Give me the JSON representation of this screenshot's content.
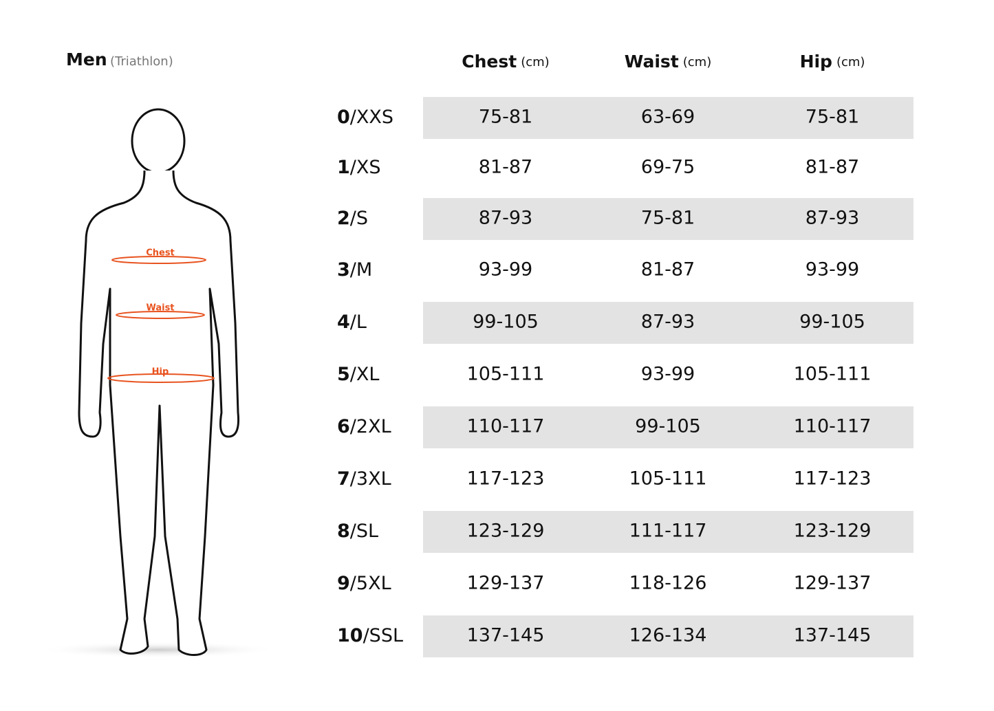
{
  "header": {
    "title": "Men",
    "subtitle": "(Triathlon)"
  },
  "figure": {
    "labels": [
      "Chest",
      "Waist",
      "Hip"
    ]
  },
  "table": {
    "columns": [
      {
        "name": "Chest",
        "unit": "(cm)"
      },
      {
        "name": "Waist",
        "unit": "(cm)"
      },
      {
        "name": "Hip",
        "unit": "(cm)"
      }
    ],
    "rows": [
      {
        "number": "0",
        "size": "/XXS",
        "cells": [
          "75-81",
          "63-69",
          "75-81"
        ]
      },
      {
        "number": "1",
        "size": "/XS",
        "cells": [
          "81-87",
          "69-75",
          "81-87"
        ]
      },
      {
        "number": "2",
        "size": "/S",
        "cells": [
          "87-93",
          "75-81",
          "87-93"
        ]
      },
      {
        "number": "3",
        "size": "/M",
        "cells": [
          "93-99",
          "81-87",
          "93-99"
        ]
      },
      {
        "number": "4",
        "size": "/L",
        "cells": [
          "99-105",
          "87-93",
          "99-105"
        ]
      },
      {
        "number": "5",
        "size": "/XL",
        "cells": [
          "105-111",
          "93-99",
          "105-111"
        ]
      },
      {
        "number": "6",
        "size": "/2XL",
        "cells": [
          "110-117",
          "99-105",
          "110-117"
        ]
      },
      {
        "number": "7",
        "size": "/3XL",
        "cells": [
          "117-123",
          "105-111",
          "117-123"
        ]
      },
      {
        "number": "8",
        "size": "/SL",
        "cells": [
          "123-129",
          "111-117",
          "123-129"
        ]
      },
      {
        "number": "9",
        "size": "/5XL",
        "cells": [
          "129-137",
          "118-126",
          "129-137"
        ]
      },
      {
        "number": "10",
        "size": "/SSL",
        "cells": [
          "137-145",
          "126-134",
          "137-145"
        ]
      }
    ]
  }
}
